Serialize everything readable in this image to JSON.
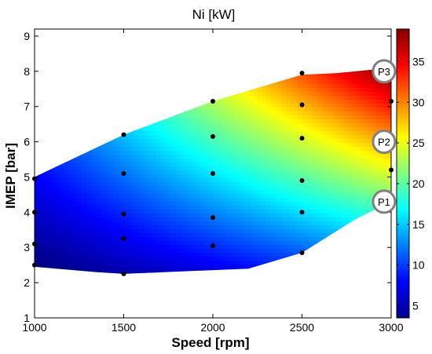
{
  "chart_data": {
    "type": "heatmap",
    "title": "Ni [kW]",
    "xlabel": "Speed [rpm]",
    "ylabel": "IMEP [bar]",
    "xlim": [
      1000,
      3000
    ],
    "ylim": [
      1,
      9.2
    ],
    "xticks": [
      "1000",
      "1500",
      "2000",
      "2500",
      "3000"
    ],
    "yticks": [
      "1",
      "2",
      "3",
      "4",
      "5",
      "6",
      "7",
      "8",
      "9"
    ],
    "colorbar": {
      "range": [
        3.5,
        39
      ],
      "ticks": [
        "5",
        "10",
        "15",
        "20",
        "25",
        "30",
        "35"
      ],
      "colormap": "jet"
    },
    "region_boundary": [
      {
        "x": 1000,
        "y": 5.0
      },
      {
        "x": 1500,
        "y": 6.2
      },
      {
        "x": 2000,
        "y": 7.15
      },
      {
        "x": 2500,
        "y": 7.9
      },
      {
        "x": 2700,
        "y": 7.95
      },
      {
        "x": 3000,
        "y": 8.1
      },
      {
        "x": 3000,
        "y": 4.3
      },
      {
        "x": 2800,
        "y": 3.8
      },
      {
        "x": 2500,
        "y": 2.85
      },
      {
        "x": 2200,
        "y": 2.4
      },
      {
        "x": 1500,
        "y": 2.25
      },
      {
        "x": 1350,
        "y": 2.3
      },
      {
        "x": 1000,
        "y": 2.45
      }
    ],
    "points": [
      {
        "x": 1000,
        "y": 4.95
      },
      {
        "x": 1000,
        "y": 4.0
      },
      {
        "x": 1000,
        "y": 3.1
      },
      {
        "x": 1000,
        "y": 2.5
      },
      {
        "x": 1500,
        "y": 6.2
      },
      {
        "x": 1500,
        "y": 5.1
      },
      {
        "x": 1500,
        "y": 3.95
      },
      {
        "x": 1500,
        "y": 3.25
      },
      {
        "x": 1500,
        "y": 2.25
      },
      {
        "x": 2000,
        "y": 7.15
      },
      {
        "x": 2000,
        "y": 6.15
      },
      {
        "x": 2000,
        "y": 5.1
      },
      {
        "x": 2000,
        "y": 3.85
      },
      {
        "x": 2000,
        "y": 3.05
      },
      {
        "x": 2500,
        "y": 7.95
      },
      {
        "x": 2500,
        "y": 7.05
      },
      {
        "x": 2500,
        "y": 6.1
      },
      {
        "x": 2500,
        "y": 4.9
      },
      {
        "x": 2500,
        "y": 4.0
      },
      {
        "x": 2500,
        "y": 2.85
      },
      {
        "x": 3000,
        "y": 7.15
      },
      {
        "x": 3000,
        "y": 5.2
      }
    ],
    "annotations": [
      {
        "label": "P3",
        "x": 2960,
        "y": 8.0
      },
      {
        "label": "P2",
        "x": 2960,
        "y": 6.0
      },
      {
        "label": "P1",
        "x": 2960,
        "y": 4.3
      }
    ],
    "grid": false
  }
}
